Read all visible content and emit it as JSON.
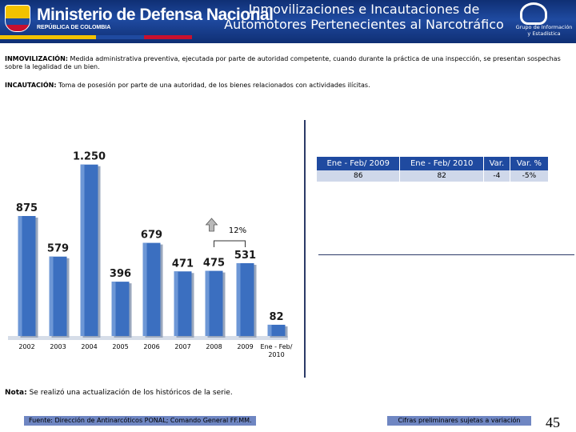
{
  "header": {
    "ministry_name": "Ministerio de Defensa Nacional",
    "ministry_sub": "REPÚBLICA DE COLOMBIA",
    "title_line1": "Inmovilizaciones e Incautaciones de",
    "title_line2": "Automotores Pertenecientes al Narcotráfico",
    "group_line1": "Grupo de Información",
    "group_line2": "y Estadística"
  },
  "definitions": {
    "inmov_term": "INMOVILIZACIÓN:",
    "inmov_text": "Medida administrativa preventiva, ejecutada por parte de autoridad competente, cuando durante la práctica de una inspección, se presentan sospechas sobre la legalidad de un bien.",
    "incaut_term": "INCAUTACIÓN:",
    "incaut_text": "Toma de posesión por parte de una autoridad, de los bienes relacionados con actividades ilícitas."
  },
  "chart_data": {
    "type": "bar",
    "categories": [
      "2002",
      "2003",
      "2004",
      "2005",
      "2006",
      "2007",
      "2008",
      "2009",
      "Ene - Feb/2010"
    ],
    "values": [
      875,
      579,
      1250,
      396,
      679,
      471,
      475,
      531,
      82
    ],
    "value_labels": [
      "875",
      "579",
      "1.250",
      "396",
      "679",
      "471",
      "475",
      "531",
      "82"
    ],
    "annotation": "12%",
    "ylim": [
      0,
      1400
    ],
    "bar_color": "#3b6fc0"
  },
  "table": {
    "headers": [
      "Ene - Feb/ 2009",
      "Ene - Feb/ 2010",
      "Var.",
      "Var. %"
    ],
    "row": [
      "86",
      "82",
      "-4",
      "-5%"
    ]
  },
  "note": {
    "label": "Nota:",
    "text": "Se realizó una actualización de los históricos de la serie."
  },
  "footer": {
    "source": "Fuente: Dirección de Antinarcóticos PONAL; Comando General FF.MM.",
    "preliminary": "Cifras preliminares sujetas a variación",
    "page": "45"
  }
}
